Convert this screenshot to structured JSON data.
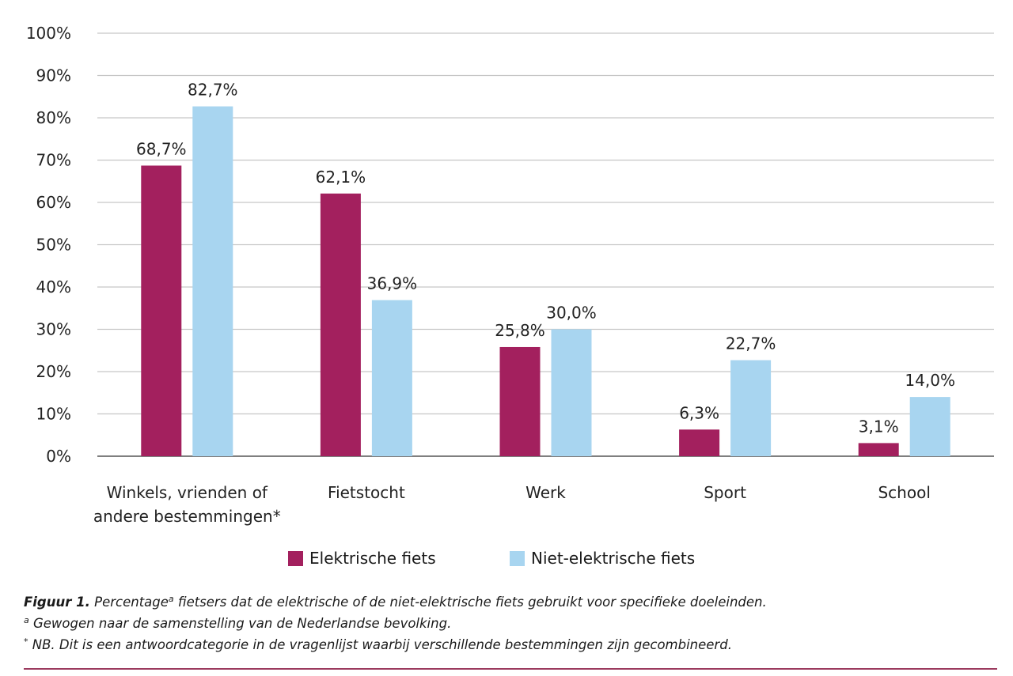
{
  "chart_data": {
    "type": "bar",
    "categories": [
      "Winkels, vrienden of andere bestemmingen*",
      "Fietstocht",
      "Werk",
      "Sport",
      "School"
    ],
    "category_lines": [
      [
        "Winkels, vrienden of",
        "andere bestemmingen*"
      ],
      [
        "Fietstocht"
      ],
      [
        "Werk"
      ],
      [
        "Sport"
      ],
      [
        "School"
      ]
    ],
    "series": [
      {
        "name": "Elektrische fiets",
        "color": "#a3205e",
        "values": [
          68.7,
          62.1,
          25.8,
          6.3,
          3.1
        ],
        "labels": [
          "68,7%",
          "62,1%",
          "25,8%",
          "6,3%",
          "3,1%"
        ]
      },
      {
        "name": "Niet-elektrische fiets",
        "color": "#a8d5f0",
        "values": [
          82.7,
          36.9,
          30.0,
          22.7,
          14.0
        ],
        "labels": [
          "82,7%",
          "36,9%",
          "30,0%",
          "22,7%",
          "14,0%"
        ]
      }
    ],
    "yticks": [
      "0%",
      "10%",
      "20%",
      "30%",
      "40%",
      "50%",
      "60%",
      "70%",
      "80%",
      "90%",
      "100%"
    ],
    "ylim": [
      0,
      100
    ],
    "grid": true,
    "legend_position": "bottom"
  },
  "caption": {
    "figure_label": "Figuur 1.",
    "line1_pre": "Percentage",
    "line1_sup": "a",
    "line1_post": "fietsers dat de elektrische of de niet-elektrische fiets gebruikt voor specifieke doeleinden.",
    "line2_sup": "a",
    "line2_text": "Gewogen naar de samenstelling van de Nederlandse bevolking.",
    "line3_sup": "*",
    "line3_text": "NB. Dit is een antwoordcategorie in de vragenlijst waarbij verschillende bestemmingen zijn gecombineerd."
  }
}
